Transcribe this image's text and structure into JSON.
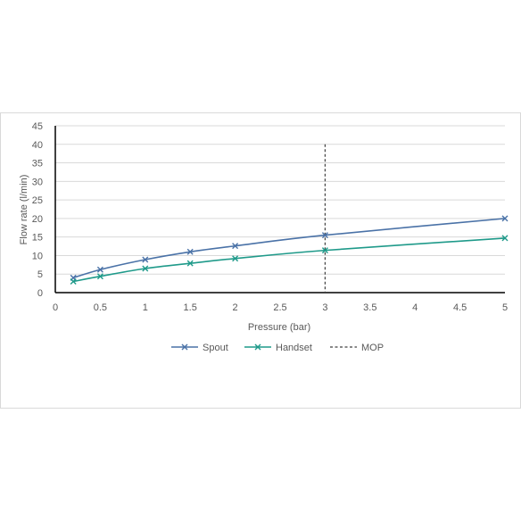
{
  "chart_data": {
    "type": "line",
    "title": "",
    "xlabel": "Pressure (bar)",
    "ylabel": "Flow rate (l/min)",
    "xlim": [
      0,
      5
    ],
    "ylim": [
      0,
      45
    ],
    "x_ticks": [
      0,
      0.5,
      1,
      1.5,
      2,
      2.5,
      3,
      3.5,
      4,
      4.5,
      5
    ],
    "y_ticks": [
      0,
      5,
      10,
      15,
      20,
      25,
      30,
      35,
      40,
      45
    ],
    "grid": true,
    "legend_position": "bottom",
    "series": [
      {
        "name": "Spout",
        "color": "#4a72a7",
        "marker": "x",
        "x": [
          0.2,
          0.5,
          1,
          1.5,
          2,
          3,
          5
        ],
        "y": [
          4,
          6.2,
          8.9,
          11,
          12.6,
          15.5,
          20
        ]
      },
      {
        "name": "Handset",
        "color": "#1f9a8a",
        "marker": "x",
        "x": [
          0.2,
          0.5,
          1,
          1.5,
          2,
          3,
          5
        ],
        "y": [
          3,
          4.4,
          6.5,
          7.9,
          9.2,
          11.4,
          14.7
        ]
      }
    ],
    "reference_lines": [
      {
        "name": "MOP",
        "x": 3,
        "color": "#404040",
        "style": "dashed"
      }
    ]
  }
}
